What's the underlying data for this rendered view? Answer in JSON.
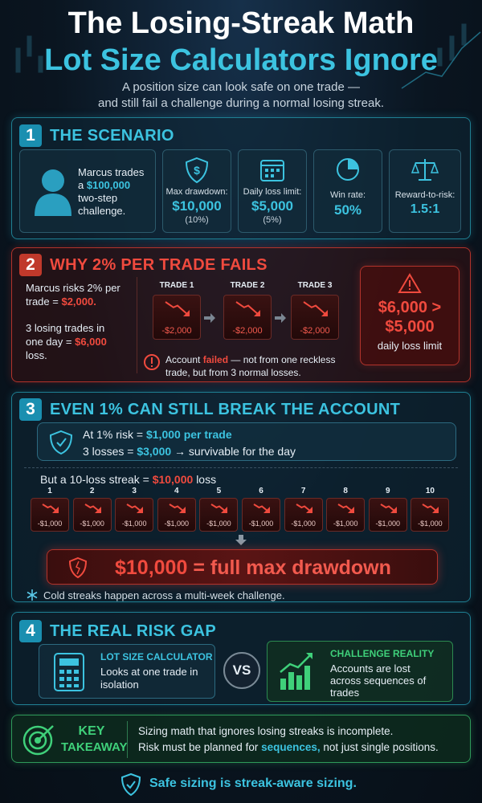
{
  "header": {
    "title_line1": "The Losing-Streak Math",
    "title_line2": "Lot Size Calculators Ignore",
    "subtitle_line1": "A position size can look safe on one trade —",
    "subtitle_line2": "and still fail a challenge during a normal losing streak."
  },
  "section1": {
    "number": "1",
    "title": "THE SCENARIO",
    "persona": {
      "pre": "Marcus trades a",
      "highlight": "$100,000",
      "post": "two-step challenge."
    },
    "stats": [
      {
        "label": "Max drawdown:",
        "value": "$10,000",
        "note": "(10%)"
      },
      {
        "label": "Daily loss limit:",
        "value": "$5,000",
        "note": "(5%)"
      },
      {
        "label": "Win rate:",
        "value": "50%"
      },
      {
        "label": "Reward-to-risk:",
        "value": "1.5:1"
      }
    ]
  },
  "section2": {
    "number": "2",
    "title": "WHY 2% PER TRADE FAILS",
    "risk": {
      "pre": "Marcus risks 2% per trade =",
      "highlight": "$2,000."
    },
    "losses": {
      "pre": "3 losing trades in one day =",
      "highlight": "$6,000",
      "post": "loss."
    },
    "trades": [
      {
        "label": "TRADE 1",
        "loss": "-$2,000"
      },
      {
        "label": "TRADE 2",
        "loss": "-$2,000"
      },
      {
        "label": "TRADE 3",
        "loss": "-$2,000"
      }
    ],
    "failed": {
      "pre": "Account",
      "highlight": "failed",
      "post": "— not from one reckless trade, but from 3 normal losses."
    },
    "callout": {
      "line1": "$6,000 >",
      "line2": "$5,000",
      "note": "daily loss limit"
    }
  },
  "section3": {
    "number": "3",
    "title": "EVEN 1% CAN STILL BREAK THE ACCOUNT",
    "risk_line": {
      "pre": "At 1% risk =",
      "highlight": "$1,000 per trade"
    },
    "survive_line": {
      "pre": "3 losses =",
      "highlight": "$3,000",
      "post": "→ survivable for the day"
    },
    "streak": {
      "pre": "But a 10-loss streak =",
      "highlight": "$10,000",
      "post": "loss"
    },
    "trades": [
      {
        "label": "1",
        "loss": "-$1,000"
      },
      {
        "label": "2",
        "loss": "-$1,000"
      },
      {
        "label": "3",
        "loss": "-$1,000"
      },
      {
        "label": "4",
        "loss": "-$1,000"
      },
      {
        "label": "5",
        "loss": "-$1,000"
      },
      {
        "label": "6",
        "loss": "-$1,000"
      },
      {
        "label": "7",
        "loss": "-$1,000"
      },
      {
        "label": "8",
        "loss": "-$1,000"
      },
      {
        "label": "9",
        "loss": "-$1,000"
      },
      {
        "label": "10",
        "loss": "-$1,000"
      }
    ],
    "result": {
      "highlight": "$10,000",
      "post": "= full max drawdown"
    },
    "note": "Cold streaks happen across a multi-week challenge."
  },
  "section4": {
    "number": "4",
    "title": "THE REAL RISK GAP",
    "left": {
      "title": "LOT SIZE CALCULATOR",
      "text": "Looks at one trade in isolation"
    },
    "vs": "VS",
    "right": {
      "title": "CHALLENGE REALITY",
      "text": "Accounts are lost across sequences of trades"
    }
  },
  "takeaway": {
    "label_line1": "KEY",
    "label_line2": "TAKEAWAY",
    "line1": "Sizing math that ignores losing streaks is incomplete.",
    "line2": {
      "pre": "Risk must be planned for",
      "highlight": "sequences,",
      "post": "not just single positions."
    }
  },
  "footer": "Safe sizing is streak-aware sizing."
}
